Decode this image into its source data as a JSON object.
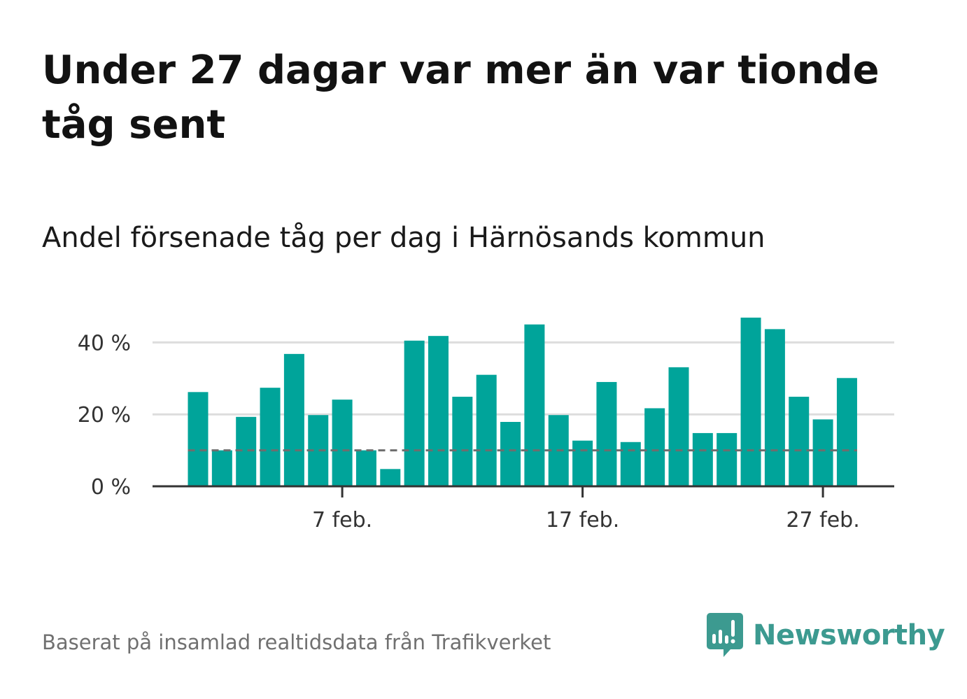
{
  "header": {
    "title": "Under 27 dagar var mer än var tionde tåg sent",
    "subtitle": "Andel försenade tåg per dag i Härnösands kommun"
  },
  "footer": {
    "source": "Baserat på insamlad realtidsdata från Trafikverket",
    "logo_text": "Newsworthy",
    "logo_icon": "newsworthy-bar-chart-bubble-icon"
  },
  "colors": {
    "bar": "#00a49a",
    "reference_line": "#6e6e6e",
    "grid": "#dddddd",
    "axis": "#333333",
    "logo": "#3c9a90"
  },
  "chart_data": {
    "type": "bar",
    "x": [
      "2024-02-01",
      "2024-02-02",
      "2024-02-03",
      "2024-02-04",
      "2024-02-05",
      "2024-02-06",
      "2024-02-07",
      "2024-02-08",
      "2024-02-09",
      "2024-02-10",
      "2024-02-11",
      "2024-02-12",
      "2024-02-13",
      "2024-02-14",
      "2024-02-15",
      "2024-02-16",
      "2024-02-17",
      "2024-02-18",
      "2024-02-19",
      "2024-02-20",
      "2024-02-21",
      "2024-02-22",
      "2024-02-23",
      "2024-02-24",
      "2024-02-25",
      "2024-02-26",
      "2024-02-27",
      "2024-02-28"
    ],
    "values": [
      26.2,
      10.0,
      19.3,
      27.4,
      36.8,
      19.8,
      24.1,
      10.0,
      4.8,
      40.5,
      41.8,
      24.9,
      31.0,
      17.9,
      45.0,
      19.8,
      12.7,
      29.0,
      12.3,
      21.7,
      33.1,
      14.8,
      14.8,
      46.9,
      43.7,
      24.9,
      18.6,
      30.1
    ],
    "y_unit": "%",
    "ylim": [
      0,
      50
    ],
    "y_ticks": [
      {
        "value": 0,
        "label": "0 %"
      },
      {
        "value": 20,
        "label": "20 %"
      },
      {
        "value": 40,
        "label": "40 %"
      }
    ],
    "x_ticks": [
      {
        "x": "2024-02-07",
        "label": "7 feb."
      },
      {
        "x": "2024-02-17",
        "label": "17 feb."
      },
      {
        "x": "2024-02-27",
        "label": "27 feb."
      }
    ],
    "reference_line": {
      "value": 10,
      "style": "dashed"
    },
    "grid": true,
    "legend": "none"
  }
}
